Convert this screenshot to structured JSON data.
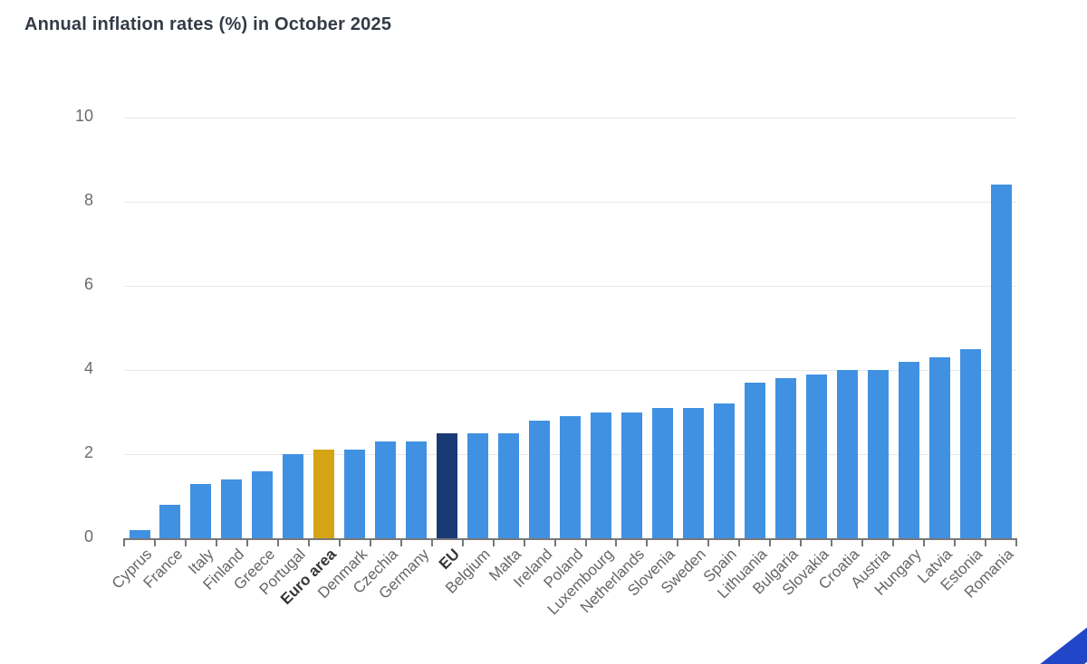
{
  "header": {
    "title": "Annual inflation rates (%) in October 2025"
  },
  "chart_data": {
    "type": "bar",
    "title": "Annual inflation rates (%) in October 2025",
    "categories": [
      "Cyprus",
      "France",
      "Italy",
      "Finland",
      "Greece",
      "Portugal",
      "Euro area",
      "Denmark",
      "Czechia",
      "Germany",
      "EU",
      "Belgium",
      "Malta",
      "Ireland",
      "Poland",
      "Luxembourg",
      "Netherlands",
      "Slovenia",
      "Sweden",
      "Spain",
      "Lithuania",
      "Bulgaria",
      "Slovakia",
      "Croatia",
      "Austria",
      "Hungary",
      "Latvia",
      "Estonia",
      "Romania"
    ],
    "values": [
      0.2,
      0.8,
      1.3,
      1.4,
      1.6,
      2.0,
      2.1,
      2.1,
      2.3,
      2.3,
      2.5,
      2.5,
      2.5,
      2.8,
      2.9,
      3.0,
      3.0,
      3.1,
      3.1,
      3.2,
      3.7,
      3.8,
      3.9,
      4.0,
      4.0,
      4.2,
      4.3,
      4.5,
      8.4
    ],
    "xlabel": "",
    "ylabel": "",
    "ylim": [
      0,
      10
    ],
    "y_ticks": [
      0,
      2,
      4,
      6,
      8,
      10
    ],
    "grid": "horizontal-on",
    "legend": "none",
    "bold_labels": [
      "Euro area",
      "EU"
    ],
    "highlights": {
      "Euro area": "bar_euro_area",
      "EU": "bar_eu"
    }
  },
  "colors": {
    "bar_default": "#4191E2",
    "bar_euro_area": "#D4A414",
    "bar_eu": "#1A3A76",
    "title_text": "#333B46",
    "axis_label": "#666666",
    "axis_label_bold": "#333333",
    "gridline": "#E8E8E8",
    "axis_line": "#777777",
    "corner_accent": "#2146C8"
  }
}
